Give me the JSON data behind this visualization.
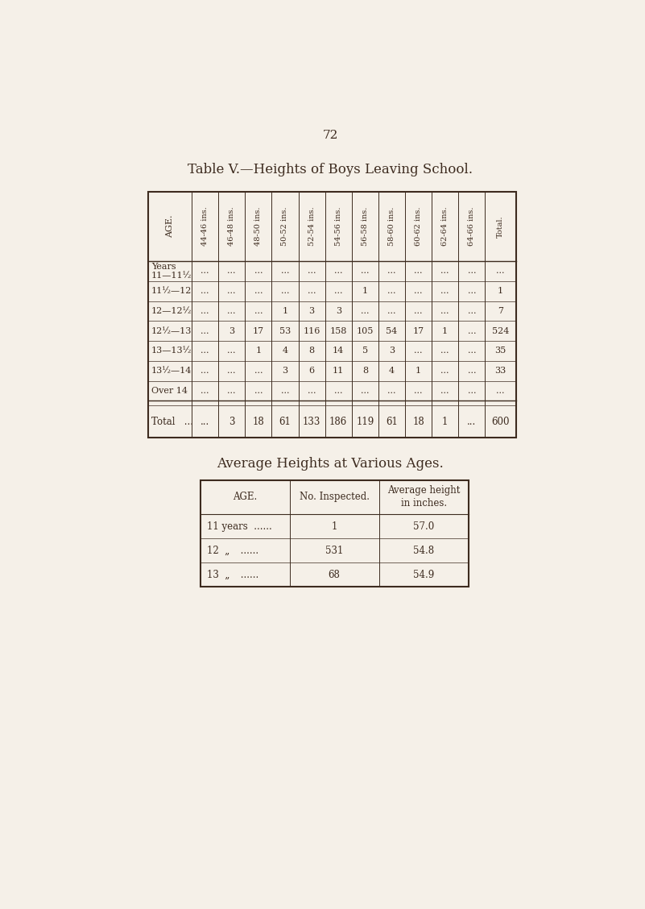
{
  "bg_color": "#f5f0e8",
  "text_color": "#3d2b1f",
  "page_number": "72",
  "title1": "Table V.—Heights of Boys Leaving School.",
  "title2": "Average Heights at Various Ages.",
  "col_headers": [
    "44-46 ins.",
    "46-48 ins.",
    "48-50 ins.",
    "50-52 ins.",
    "52-54 ins.",
    "54-56 ins.",
    "56-58 ins.",
    "58-60 ins.",
    "60-62 ins.",
    "62-64 ins.",
    "64-66 ins.",
    "Total."
  ],
  "row_labels": [
    "Years\n11—11½",
    "11½—12",
    "12—12½",
    "12½—13",
    "13—13½",
    "13½—14",
    "Over 14"
  ],
  "table_data": [
    [
      "...",
      "...",
      "...",
      "...",
      "...",
      "...",
      "...",
      "...",
      "...",
      "...",
      "...",
      "..."
    ],
    [
      "...",
      "...",
      "...",
      "...",
      "...",
      "...",
      "1",
      "...",
      "...",
      "...",
      "...",
      "1"
    ],
    [
      "...",
      "...",
      "...",
      "1",
      "3",
      "3",
      "...",
      "...",
      "...",
      "...",
      "...",
      "7"
    ],
    [
      "...",
      "3",
      "17",
      "53",
      "116",
      "158",
      "105",
      "54",
      "17",
      "1",
      "...",
      "524"
    ],
    [
      "...",
      "...",
      "1",
      "4",
      "8",
      "14",
      "5",
      "3",
      "...",
      "...",
      "...",
      "35"
    ],
    [
      "...",
      "...",
      "...",
      "3",
      "6",
      "11",
      "8",
      "4",
      "1",
      "...",
      "...",
      "33"
    ],
    [
      "...",
      "...",
      "...",
      "...",
      "...",
      "...",
      "...",
      "...",
      "...",
      "...",
      "...",
      "..."
    ]
  ],
  "total_row": [
    "...",
    "3",
    "18",
    "61",
    "133",
    "186",
    "119",
    "61",
    "18",
    "1",
    "...",
    "600"
  ],
  "avg_headers": [
    "AGE.",
    "No. Inspected.",
    "Average height\nin inches."
  ],
  "avg_age_labels": [
    "11 years  ......",
    "12  „   ......",
    "13  „   ......"
  ],
  "avg_no_insp": [
    "1",
    "531",
    "68"
  ],
  "avg_heights": [
    "57.0",
    "54.8",
    "54.9"
  ]
}
